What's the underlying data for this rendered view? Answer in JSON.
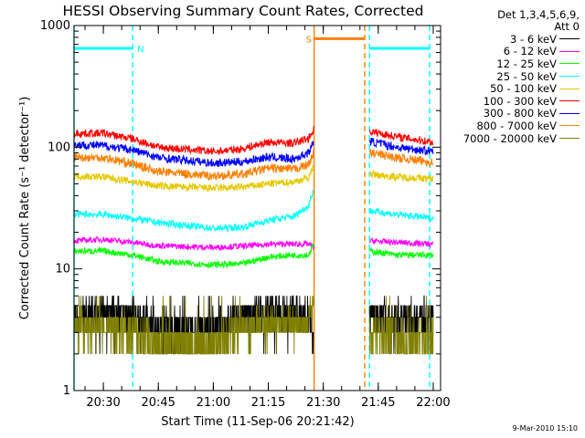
{
  "chart_data": {
    "type": "line",
    "title": "HESSI Observing Summary Count Rates, Corrected",
    "ylabel": "Corrected Count Rate (s⁻¹ detector⁻¹)",
    "xlabel": "Start Time (11-Sep-06 20:21:42)",
    "y_scale": "log",
    "ylim": [
      1,
      1000
    ],
    "y_ticks": [
      {
        "value": 1,
        "label": "1"
      },
      {
        "value": 10,
        "label": "10"
      },
      {
        "value": 100,
        "label": "100"
      },
      {
        "value": 1000,
        "label": "1000"
      }
    ],
    "xlim": [
      "20:22",
      "22:02"
    ],
    "x_ticks": [
      "20:30",
      "20:45",
      "21:00",
      "21:15",
      "21:30",
      "21:45",
      "22:00"
    ],
    "gaps": [
      [
        "21:27.5",
        "21:42.5"
      ]
    ],
    "legend_header": [
      "Det 1,3,4,5,6,9,",
      "Att 0"
    ],
    "series": [
      {
        "name": "3 - 6 keV",
        "color": "#000000",
        "points": [
          [
            "20:22",
            4
          ],
          [
            "20:30",
            4.5
          ],
          [
            "20:38",
            4.2
          ],
          [
            "20:45",
            3.3
          ],
          [
            "21:00",
            3.2
          ],
          [
            "21:08",
            4
          ],
          [
            "21:15",
            4.5
          ],
          [
            "21:26",
            4.2
          ],
          [
            "21:27.4",
            3
          ],
          [
            "21:42.6",
            4
          ],
          [
            "21:50",
            4
          ],
          [
            "21:58",
            4
          ],
          [
            "22:00",
            4
          ]
        ]
      },
      {
        "name": "6 - 12 keV",
        "color": "#ff00ff",
        "points": [
          [
            "20:22",
            17
          ],
          [
            "20:30",
            17.5
          ],
          [
            "20:38",
            16.5
          ],
          [
            "20:45",
            15.5
          ],
          [
            "21:00",
            15
          ],
          [
            "21:10",
            15.5
          ],
          [
            "21:15",
            16
          ],
          [
            "21:26",
            16
          ],
          [
            "21:27.4",
            15
          ],
          [
            "21:42.6",
            17
          ],
          [
            "21:50",
            16.5
          ],
          [
            "22:00",
            16
          ]
        ]
      },
      {
        "name": "12 - 25 keV",
        "color": "#00ff00",
        "points": [
          [
            "20:22",
            14
          ],
          [
            "20:30",
            14
          ],
          [
            "20:38",
            13
          ],
          [
            "20:45",
            11.5
          ],
          [
            "21:00",
            10.8
          ],
          [
            "21:08",
            11
          ],
          [
            "21:15",
            12.5
          ],
          [
            "21:22",
            13
          ],
          [
            "21:26",
            13
          ],
          [
            "21:27.4",
            16
          ],
          [
            "21:42.6",
            14
          ],
          [
            "21:50",
            13
          ],
          [
            "22:00",
            13
          ]
        ]
      },
      {
        "name": "25 - 50 keV",
        "color": "#00ffff",
        "points": [
          [
            "20:22",
            28
          ],
          [
            "20:30",
            28
          ],
          [
            "20:38",
            26
          ],
          [
            "20:45",
            24
          ],
          [
            "21:00",
            21.5
          ],
          [
            "21:08",
            22
          ],
          [
            "21:15",
            25
          ],
          [
            "21:22",
            27
          ],
          [
            "21:26",
            33
          ],
          [
            "21:27.4",
            45
          ],
          [
            "21:42.6",
            30
          ],
          [
            "21:50",
            28
          ],
          [
            "22:00",
            26
          ]
        ]
      },
      {
        "name": "50 - 100 keV",
        "color": "#e6c800",
        "points": [
          [
            "20:22",
            58
          ],
          [
            "20:30",
            57
          ],
          [
            "20:38",
            52
          ],
          [
            "20:45",
            48
          ],
          [
            "21:00",
            46
          ],
          [
            "21:08",
            47
          ],
          [
            "21:15",
            50
          ],
          [
            "21:22",
            52
          ],
          [
            "21:26",
            56
          ],
          [
            "21:27.4",
            70
          ],
          [
            "21:42.6",
            60
          ],
          [
            "21:50",
            57
          ],
          [
            "22:00",
            55
          ]
        ]
      },
      {
        "name": "100 - 300 keV",
        "color": "#ff0000",
        "points": [
          [
            "20:22",
            130
          ],
          [
            "20:30",
            130
          ],
          [
            "20:38",
            117
          ],
          [
            "20:45",
            100
          ],
          [
            "21:00",
            92
          ],
          [
            "21:08",
            97
          ],
          [
            "21:15",
            110
          ],
          [
            "21:22",
            108
          ],
          [
            "21:26",
            118
          ],
          [
            "21:27.4",
            140
          ],
          [
            "21:42.6",
            135
          ],
          [
            "21:50",
            122
          ],
          [
            "22:00",
            110
          ]
        ]
      },
      {
        "name": "300 - 800 keV",
        "color": "#0000ff",
        "points": [
          [
            "20:22",
            105
          ],
          [
            "20:30",
            103
          ],
          [
            "20:38",
            95
          ],
          [
            "20:45",
            82
          ],
          [
            "21:00",
            74
          ],
          [
            "21:08",
            76
          ],
          [
            "21:15",
            83
          ],
          [
            "21:22",
            80
          ],
          [
            "21:26",
            90
          ],
          [
            "21:27.4",
            110
          ],
          [
            "21:42.6",
            112
          ],
          [
            "21:50",
            100
          ],
          [
            "22:00",
            92
          ]
        ]
      },
      {
        "name": "800 - 7000 keV",
        "color": "#ff7f00",
        "points": [
          [
            "20:22",
            83
          ],
          [
            "20:30",
            82
          ],
          [
            "20:38",
            73
          ],
          [
            "20:45",
            63
          ],
          [
            "21:00",
            58
          ],
          [
            "21:08",
            60
          ],
          [
            "21:15",
            67
          ],
          [
            "21:22",
            66
          ],
          [
            "21:26",
            72
          ],
          [
            "21:27.4",
            90
          ],
          [
            "21:42.6",
            90
          ],
          [
            "21:50",
            82
          ],
          [
            "22:00",
            75
          ]
        ]
      },
      {
        "name": "7000 - 20000 keV",
        "color": "#808000",
        "points": [
          [
            "20:22",
            3.2
          ],
          [
            "20:30",
            3.3
          ],
          [
            "20:38",
            3.2
          ],
          [
            "20:45",
            2.5
          ],
          [
            "21:00",
            2.4
          ],
          [
            "21:08",
            3.2
          ],
          [
            "21:15",
            3.5
          ],
          [
            "21:26",
            3.4
          ],
          [
            "21:27.4",
            6
          ],
          [
            "21:42.6",
            3
          ],
          [
            "21:50",
            2.7
          ],
          [
            "22:00",
            2.8
          ]
        ]
      }
    ],
    "flag_bars": [
      {
        "label": "N",
        "color": "#00ffff",
        "y_value": 650,
        "intervals": [
          [
            "20:22",
            "20:38"
          ],
          [
            "21:42.6",
            "21:59"
          ]
        ],
        "boundaries": [
          "20:22",
          "20:38",
          "21:42.6",
          "21:59"
        ]
      },
      {
        "label": "S",
        "color": "#ff7f00",
        "y_value": 780,
        "intervals": [
          [
            "21:27.5",
            "21:41.3"
          ]
        ],
        "boundaries": [
          "21:27.5",
          "21:41.3"
        ]
      }
    ],
    "grid": false,
    "legend_position": "right"
  },
  "footer": {
    "stamp": "9-Mar-2010 15:10"
  }
}
